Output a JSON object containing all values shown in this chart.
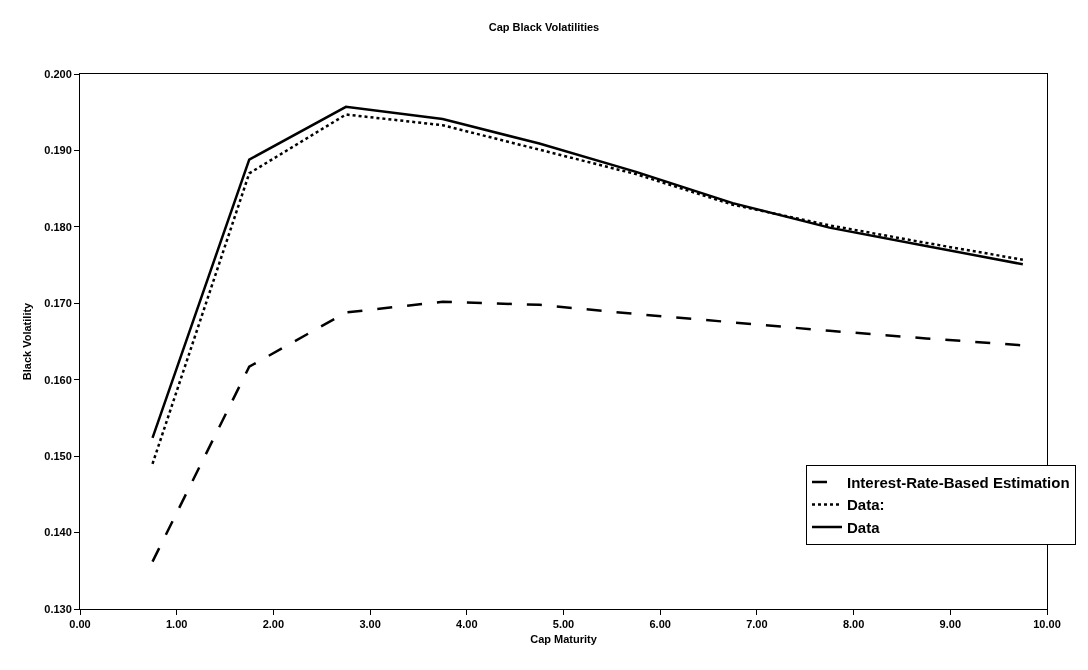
{
  "chart_data": {
    "type": "line",
    "title": "Cap Black Volatilities",
    "xlabel": "Cap Maturity",
    "ylabel": "Black Volatility",
    "x": [
      0.75,
      1.75,
      2.75,
      3.75,
      4.75,
      5.75,
      6.75,
      7.75,
      8.75,
      9.75
    ],
    "series": [
      {
        "name": "Interest-Rate-Based Estimation",
        "color": "#000000",
        "line_style": "dashed",
        "values": [
          0.1362,
          0.1617,
          0.1688,
          0.1702,
          0.1698,
          0.1686,
          0.1675,
          0.1664,
          0.1654,
          0.1645
        ]
      },
      {
        "name": "Data:",
        "color": "#000000",
        "line_style": "dotted",
        "values": [
          0.149,
          0.187,
          0.1947,
          0.1933,
          0.1901,
          0.1869,
          0.1829,
          0.1802,
          0.1779,
          0.1757
        ]
      },
      {
        "name": "Data",
        "color": "#000000",
        "line_style": "solid",
        "values": [
          0.1524,
          0.1888,
          0.1957,
          0.1941,
          0.1909,
          0.1872,
          0.1831,
          0.1799,
          0.1775,
          0.1751
        ]
      }
    ],
    "xlim": [
      0,
      10
    ],
    "xticks": [
      {
        "value": 0,
        "label": "0.00"
      },
      {
        "value": 1,
        "label": "1.00"
      },
      {
        "value": 2,
        "label": "2.00"
      },
      {
        "value": 3,
        "label": "3.00"
      },
      {
        "value": 4,
        "label": "4.00"
      },
      {
        "value": 5,
        "label": "5.00"
      },
      {
        "value": 6,
        "label": "6.00"
      },
      {
        "value": 7,
        "label": "7.00"
      },
      {
        "value": 8,
        "label": "8.00"
      },
      {
        "value": 9,
        "label": "9.00"
      },
      {
        "value": 10,
        "label": "10.00"
      }
    ],
    "ylim": [
      0.13,
      0.2
    ],
    "yticks": [
      {
        "value": 0.13,
        "label": "0.130"
      },
      {
        "value": 0.14,
        "label": "0.140"
      },
      {
        "value": 0.15,
        "label": "0.150"
      },
      {
        "value": 0.16,
        "label": "0.160"
      },
      {
        "value": 0.17,
        "label": "0.170"
      },
      {
        "value": 0.18,
        "label": "0.180"
      },
      {
        "value": 0.19,
        "label": "0.190"
      },
      {
        "value": 0.2,
        "label": "0.200"
      }
    ],
    "grid": false,
    "legend": "bottom right",
    "marker": "none"
  }
}
